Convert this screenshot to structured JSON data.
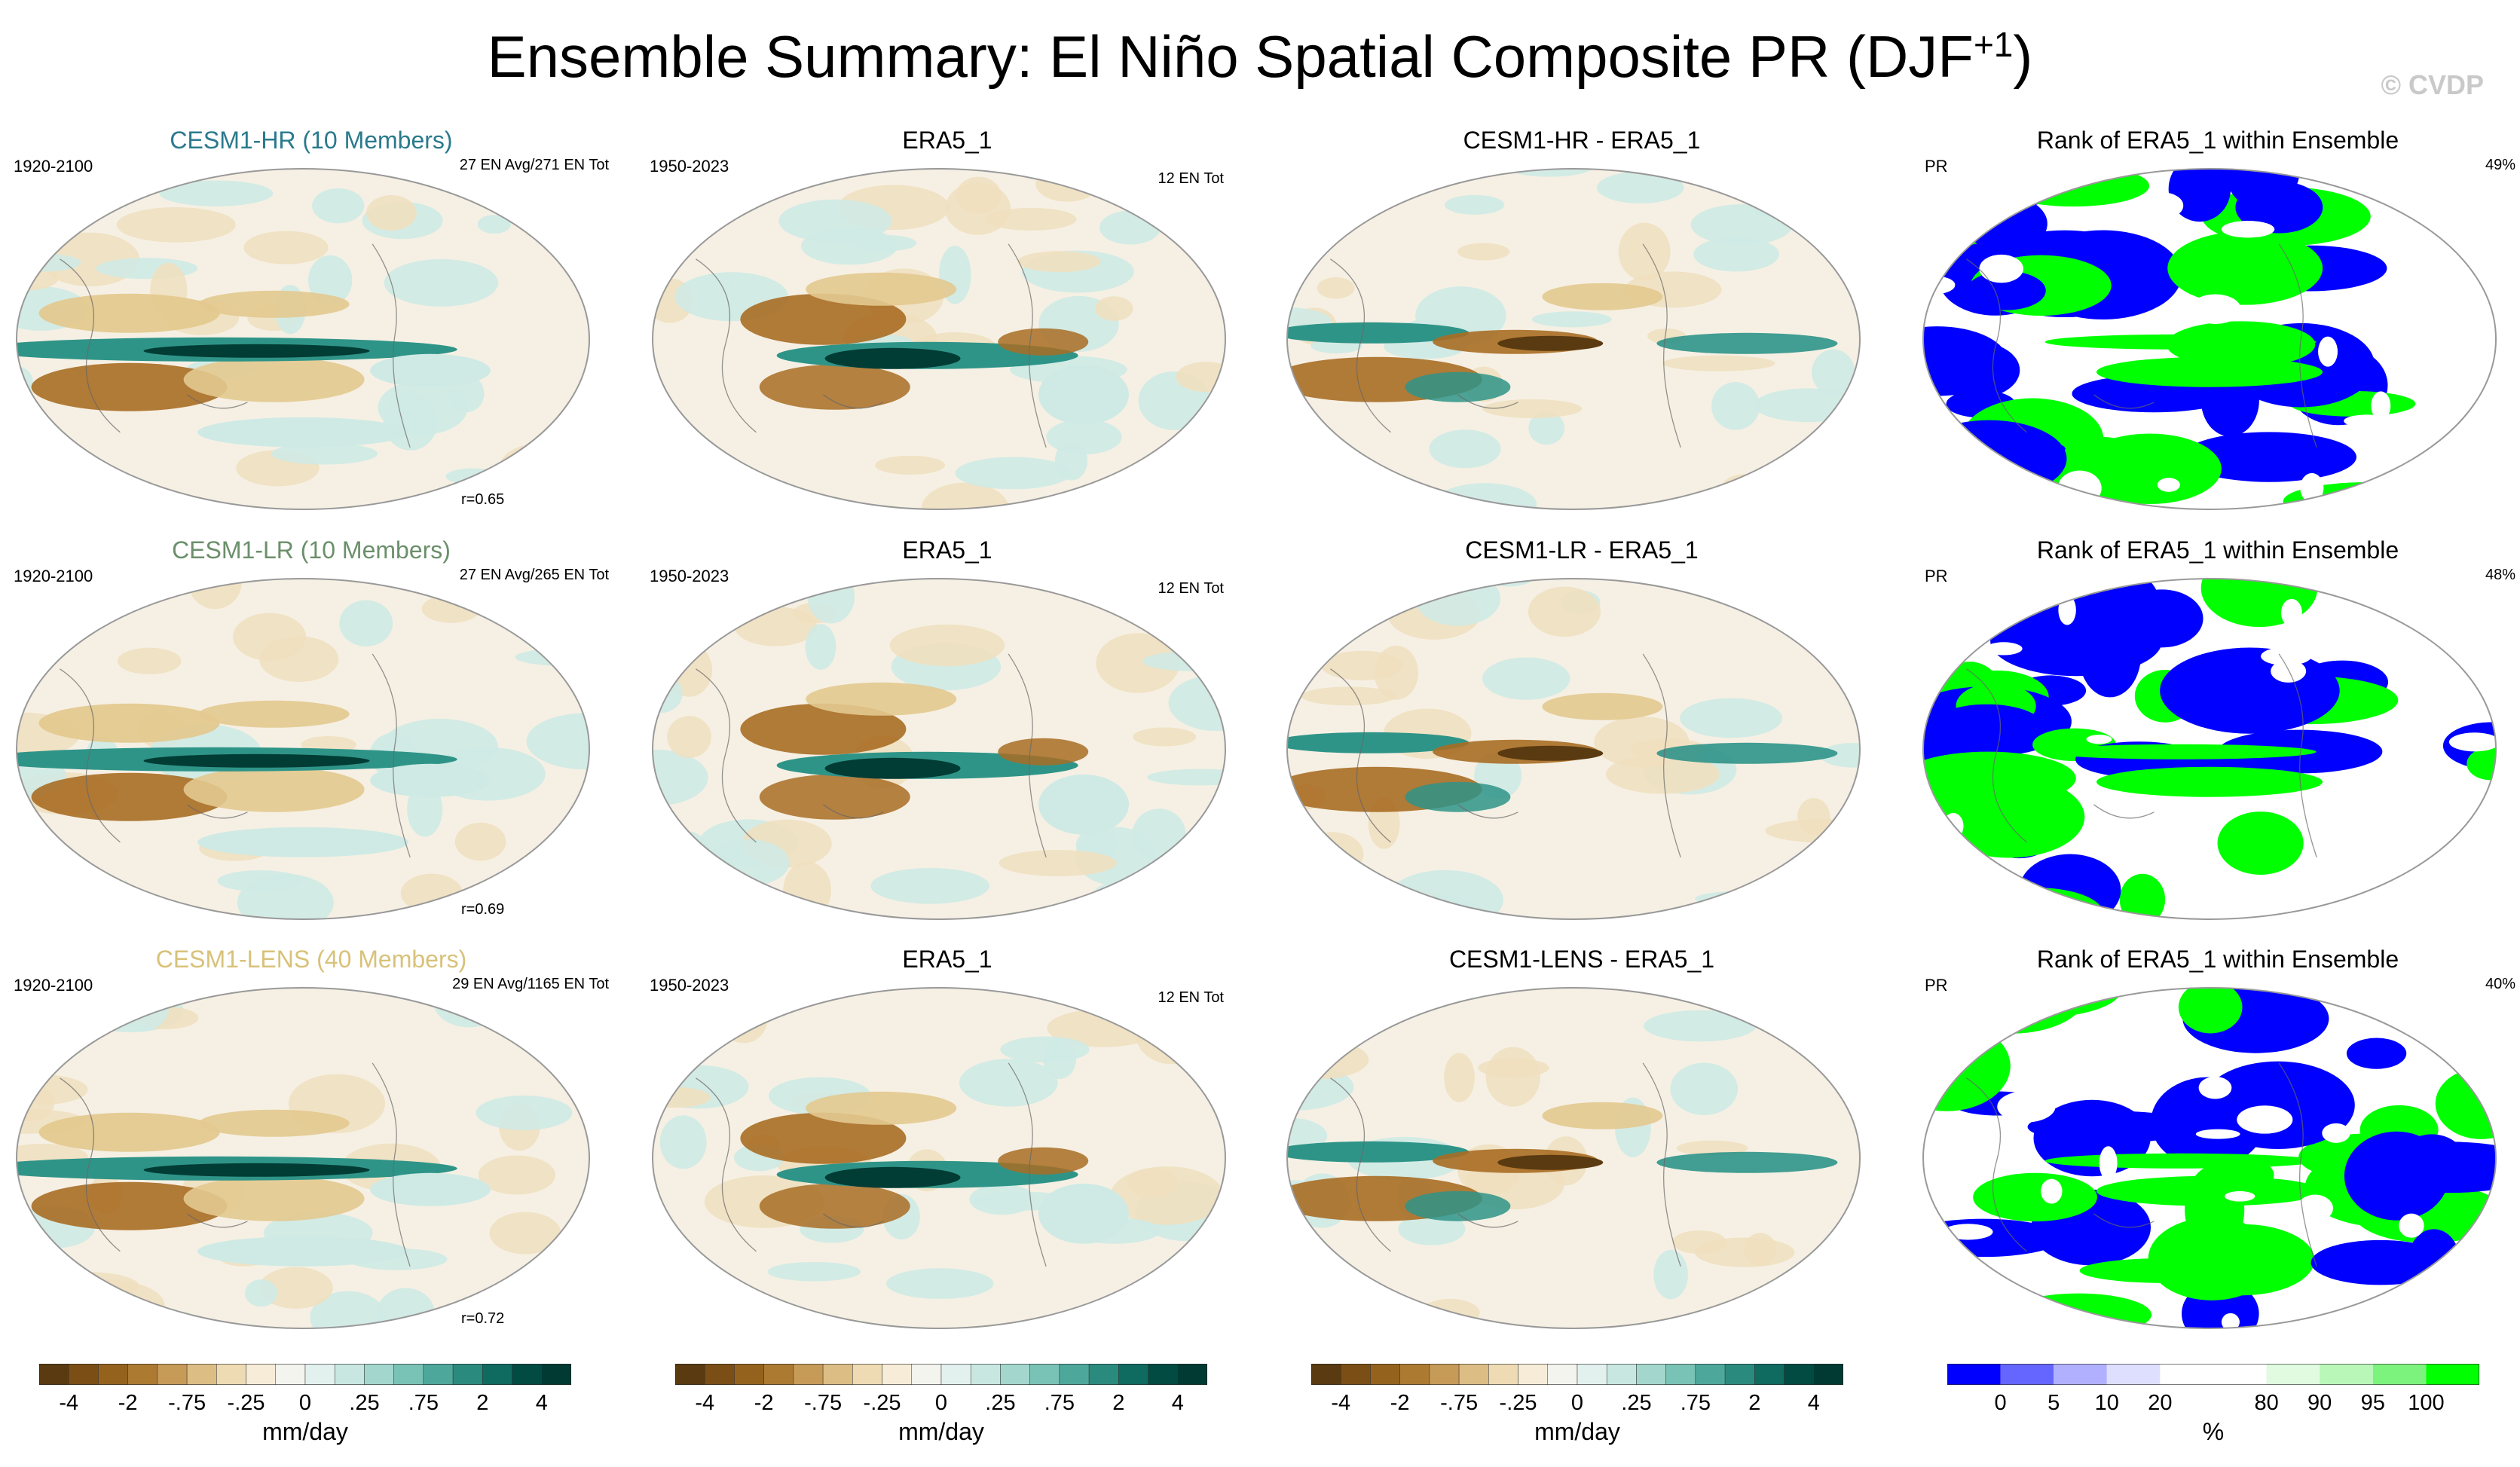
{
  "title_main": "Ensemble Summary: El Niño Spatial Composite PR (DJF",
  "title_sup": "+1",
  "title_end": ")",
  "watermark": "© CVDP",
  "colors": {
    "brown_dark": "#5a3a10",
    "brown": "#a86d24",
    "tan": "#e3c98f",
    "cream": "#f6ebd6",
    "mint": "#cfeae4",
    "teal": "#2f9488",
    "teal_dark": "#013c35",
    "rank_blue": "#0000ff",
    "rank_green": "#00ff00",
    "title_hr": "#2a7a8c",
    "title_lr": "#6b8f6b",
    "title_lens": "#d8c27a"
  },
  "rows": [
    {
      "model": {
        "title": "CESM1-HR (10 Members)",
        "years": "1920-2100",
        "count": "27 EN Avg/271 EN Tot",
        "r": "r=0.65",
        "color": "#2a7a8c"
      },
      "obs": {
        "title": "ERA5_1",
        "years": "1950-2023",
        "count": "12 EN Tot"
      },
      "diff": {
        "title": "CESM1-HR - ERA5_1"
      },
      "rank": {
        "title": "Rank of ERA5_1 within Ensemble",
        "var": "PR",
        "pct": "49%"
      }
    },
    {
      "model": {
        "title": "CESM1-LR (10 Members)",
        "years": "1920-2100",
        "count": "27 EN Avg/265 EN Tot",
        "r": "r=0.69",
        "color": "#6b8f6b"
      },
      "obs": {
        "title": "ERA5_1",
        "years": "1950-2023",
        "count": "12 EN Tot"
      },
      "diff": {
        "title": "CESM1-LR - ERA5_1"
      },
      "rank": {
        "title": "Rank of ERA5_1 within Ensemble",
        "var": "PR",
        "pct": "48%"
      }
    },
    {
      "model": {
        "title": "CESM1-LENS (40 Members)",
        "years": "1920-2100",
        "count": "29 EN Avg/1165 EN Tot",
        "r": "r=0.72",
        "color": "#d8c27a"
      },
      "obs": {
        "title": "ERA5_1",
        "years": "1950-2023",
        "count": "12 EN Tot"
      },
      "diff": {
        "title": "CESM1-LENS - ERA5_1"
      },
      "rank": {
        "title": "Rank of ERA5_1 within Ensemble",
        "var": "PR",
        "pct": "40%"
      }
    }
  ],
  "chart_data": {
    "type": "heatmap",
    "projection": "robinson global maps",
    "layout": "3 rows x 4 columns",
    "colorbar_pr": {
      "levels": [
        -5,
        -4,
        -3,
        -2,
        -1,
        -0.75,
        -0.5,
        -0.25,
        0,
        0.25,
        0.5,
        0.75,
        1,
        2,
        3,
        4,
        5
      ],
      "tick_labels": [
        "-4",
        "-2",
        "-.75",
        "-.25",
        "0",
        ".25",
        ".75",
        "2",
        "4"
      ],
      "colors": [
        "#5a3a10",
        "#7a4e14",
        "#95621e",
        "#ad7a32",
        "#c69a57",
        "#dcbd84",
        "#eedbb3",
        "#f6ecd8",
        "#f4f4ef",
        "#e2f1ee",
        "#c7e7e0",
        "#a3d7cd",
        "#79c2b6",
        "#4da89b",
        "#2a8a7e",
        "#0f6a5f",
        "#024b42",
        "#013a33"
      ],
      "unit": "mm/day"
    },
    "colorbar_rank": {
      "tick_labels": [
        "0",
        "5",
        "10",
        "20",
        "80",
        "90",
        "95",
        "100"
      ],
      "colors": [
        "#0000ff",
        "#6565ff",
        "#b0b0ff",
        "#dedeff",
        "#ffffff",
        "#ffffff",
        "#e0fbe0",
        "#b9f7b9",
        "#7cf37c",
        "#00ff00"
      ],
      "unit": "%"
    }
  }
}
